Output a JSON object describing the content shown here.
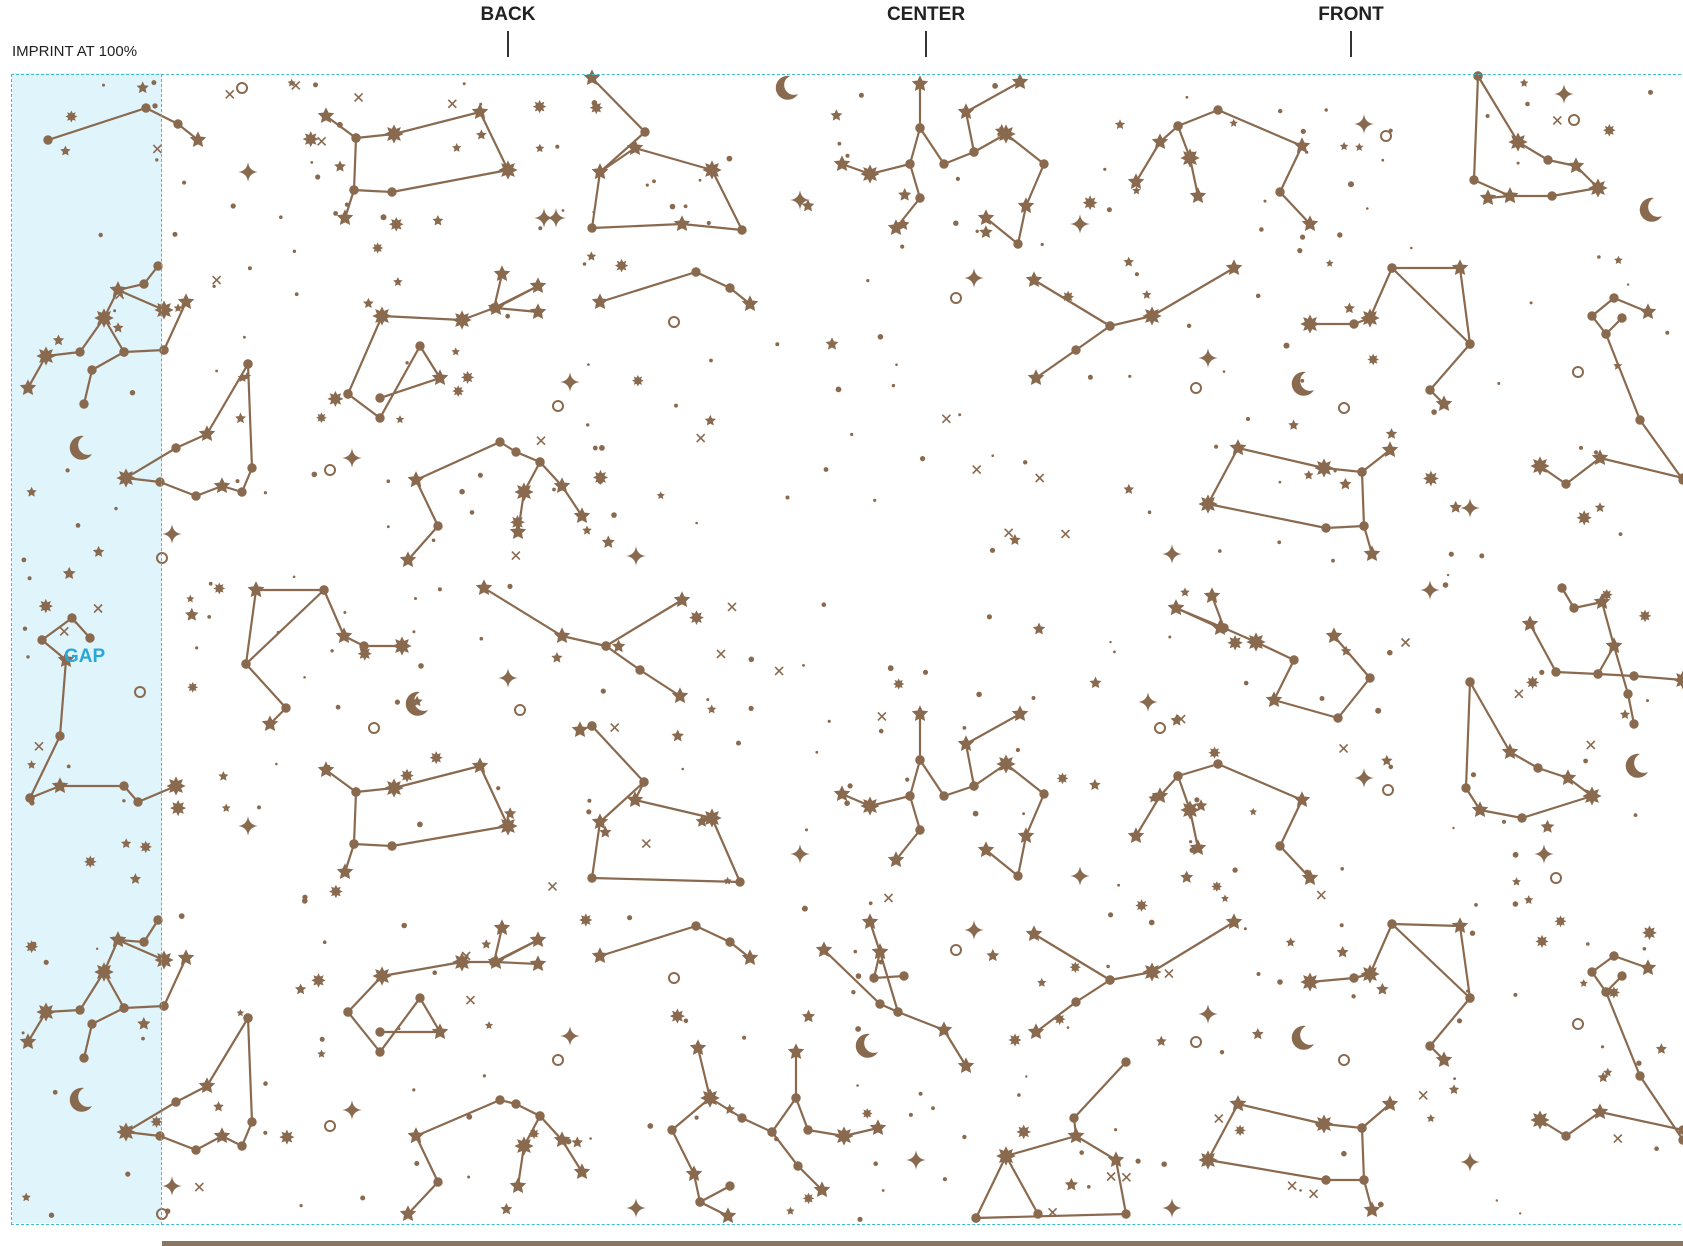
{
  "labels": {
    "imprint": "IMPRINT AT 100%",
    "gap": "GAP",
    "positions": {
      "back": "BACK",
      "center": "CENTER",
      "front": "FRONT"
    }
  },
  "colors": {
    "pattern": "#8a6a4f",
    "guide_dashed": "#3cbfcf",
    "gap_fill": "#e0f4fb",
    "gap_text": "#2aa7d9",
    "label_text": "#222222"
  },
  "pattern": {
    "motif": "constellations",
    "icons": [
      "star-icon",
      "sparkle-icon",
      "crescent-moon-icon",
      "ring-icon",
      "dot-icon"
    ]
  }
}
